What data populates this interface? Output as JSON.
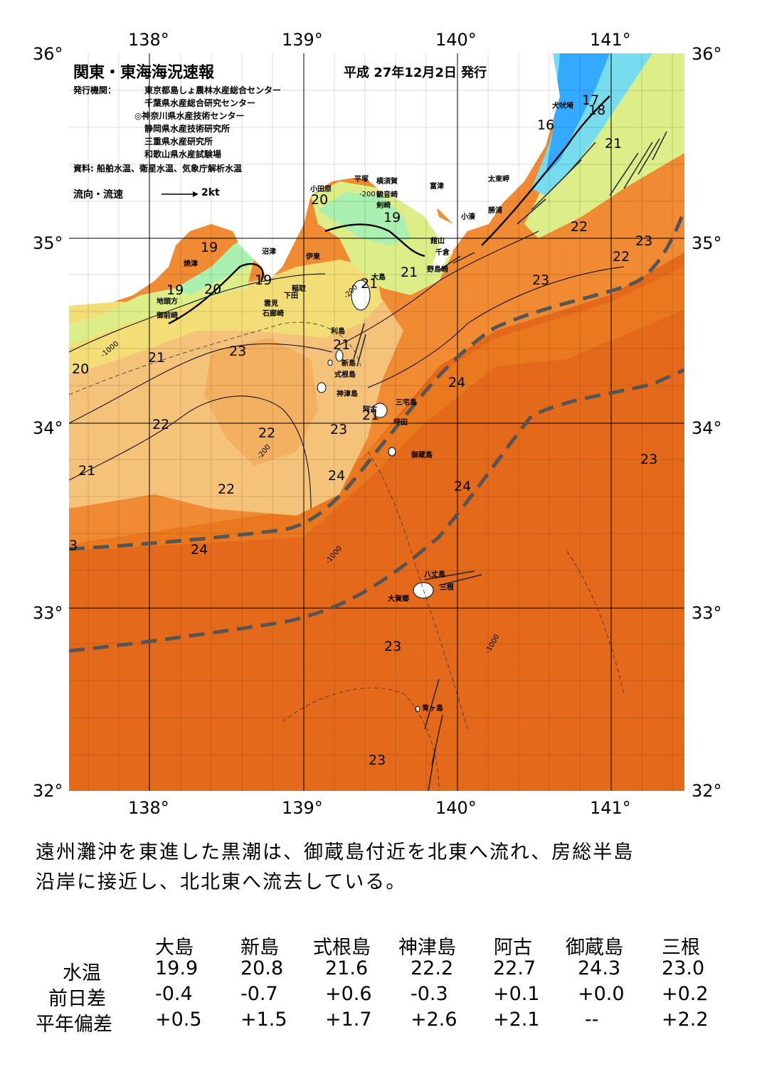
{
  "title": "関東・東海海況速報",
  "issue_date": "平成 27年12月2日 発行",
  "issuers_label": "発行機関：",
  "issuers": [
    "東京都島しょ農林水産総合センター",
    "千葉県水産総合研究センター",
    "◎神奈川県水産技術センター",
    "静岡県水産技術研究所",
    "三重県水産研究所",
    "和歌山県水産試験場"
  ],
  "data_source": "資料: 船舶水温、衛星水温、気象庁解析水温",
  "legend": {
    "label": "流向・流速",
    "scale": "2kt"
  },
  "longitude_ticks": [
    "138°",
    "139°",
    "140°",
    "141°"
  ],
  "latitude_ticks": [
    "36°",
    "35°",
    "34°",
    "33°",
    "32°"
  ],
  "temperature_labels": [
    "17",
    "18",
    "16",
    "21",
    "22",
    "23",
    "22",
    "23",
    "20",
    "19",
    "19",
    "20",
    "21",
    "19",
    "19",
    "20",
    "21",
    "23",
    "21",
    "20",
    "21",
    "24",
    "22",
    "22",
    "23",
    "21",
    "24",
    "22",
    "23",
    "24",
    "3",
    "24",
    "23",
    "23"
  ],
  "place_names": [
    "犬吠埼",
    "太東岬",
    "勝浦",
    "小湊",
    "富津",
    "観音崎",
    "横須賀",
    "平塚",
    "小田原",
    "剣崎",
    "館山",
    "千倉",
    "野島崎",
    "沼津",
    "伊東",
    "焼津",
    "稲取",
    "下田",
    "雲見",
    "石廊崎",
    "地頭方",
    "御前崎",
    "大島",
    "利島",
    "新島",
    "式根島",
    "神津島",
    "三宅島",
    "坪田",
    "阿古",
    "御蔵島",
    "八丈島",
    "三根",
    "大賀郷",
    "青ヶ島"
  ],
  "depth_labels": [
    "-1000",
    "-200"
  ],
  "summary": [
    "遠州灘沖を東進した黒潮は、御蔵島付近を北東へ流れ、房総半島",
    "沿岸に接近し、北北東へ流去している。"
  ],
  "table": {
    "columns": [
      "大島",
      "新島",
      "式根島",
      "神津島",
      "阿古",
      "御蔵島",
      "三根"
    ],
    "rows": [
      {
        "label": "水温",
        "values": [
          "19.9",
          "20.8",
          "21.6",
          "22.2",
          "22.7",
          "24.3",
          "23.0"
        ]
      },
      {
        "label": "前日差",
        "values": [
          "-0.4",
          "-0.7",
          "+0.6",
          "-0.3",
          "+0.1",
          "+0.0",
          "+0.2"
        ]
      },
      {
        "label": "平年偏差",
        "values": [
          "+0.5",
          "+1.5",
          "+1.7",
          "+2.6",
          "+2.1",
          "--",
          "+2.2"
        ]
      }
    ]
  },
  "colors": {
    "land": "#ffffff",
    "temp_16_17": "#33aaff",
    "temp_18": "#77ddee",
    "temp_19": "#aaf0b0",
    "temp_20": "#ddee88",
    "temp_21": "#f2dd77",
    "temp_22": "#f5c27a",
    "temp_23": "#f08a33",
    "temp_24": "#e4691a",
    "kuroshio_path": "#555555"
  }
}
